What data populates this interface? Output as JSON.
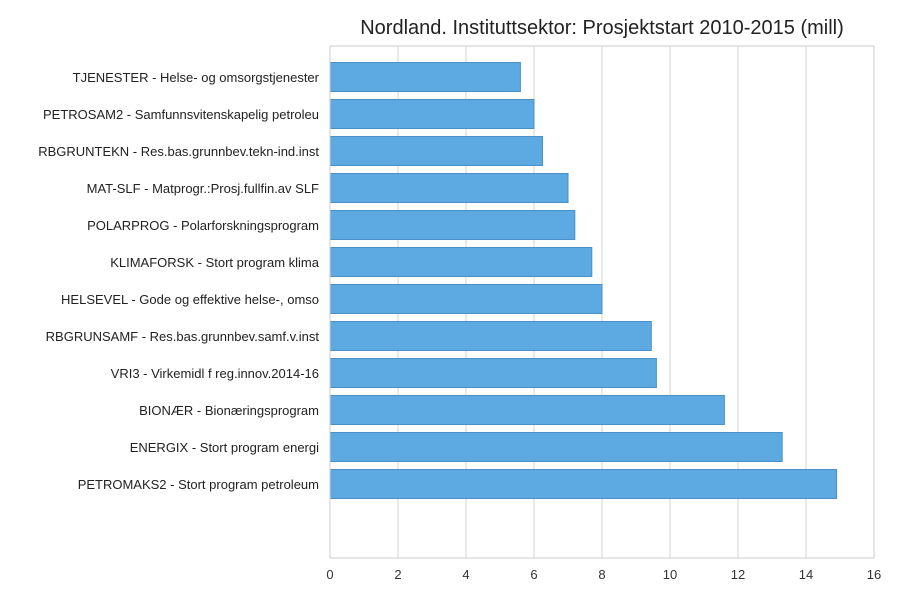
{
  "chart_data": {
    "type": "bar",
    "orientation": "horizontal",
    "title": "Nordland. Instituttsektor: Prosjektstart 2010-2015 (mill)",
    "xlabel": "",
    "ylabel": "",
    "xlim": [
      0,
      16
    ],
    "xticks": [
      0,
      2,
      4,
      6,
      8,
      10,
      12,
      14,
      16
    ],
    "grid": "vertical",
    "bar_color": "#5DA9E2",
    "bar_edge_color": "#4A90C6",
    "grid_color": "#D0D0D0",
    "categories": [
      "TJENESTER - Helse- og omsorgstjenester",
      "PETROSAM2 - Samfunnsvitenskapelig petroleu",
      "RBGRUNTEKN - Res.bas.grunnbev.tekn-ind.inst",
      "MAT-SLF - Matprogr.:Prosj.fullfin.av SLF",
      "POLARPROG - Polarforskningsprogram",
      "KLIMAFORSK - Stort program klima",
      "HELSEVEL - Gode og effektive helse-, omso",
      "RBGRUNSAMF - Res.bas.grunnbev.samf.v.inst",
      "VRI3 - Virkemidl f reg.innov.2014-16",
      "BIONÆR - Bionæringsprogram",
      "ENERGIX - Stort program energi",
      "PETROMAKS2 - Stort program petroleum"
    ],
    "values": [
      5.6,
      6.0,
      6.25,
      7.0,
      7.2,
      7.7,
      8.0,
      9.45,
      9.6,
      11.6,
      13.3,
      14.9
    ]
  }
}
